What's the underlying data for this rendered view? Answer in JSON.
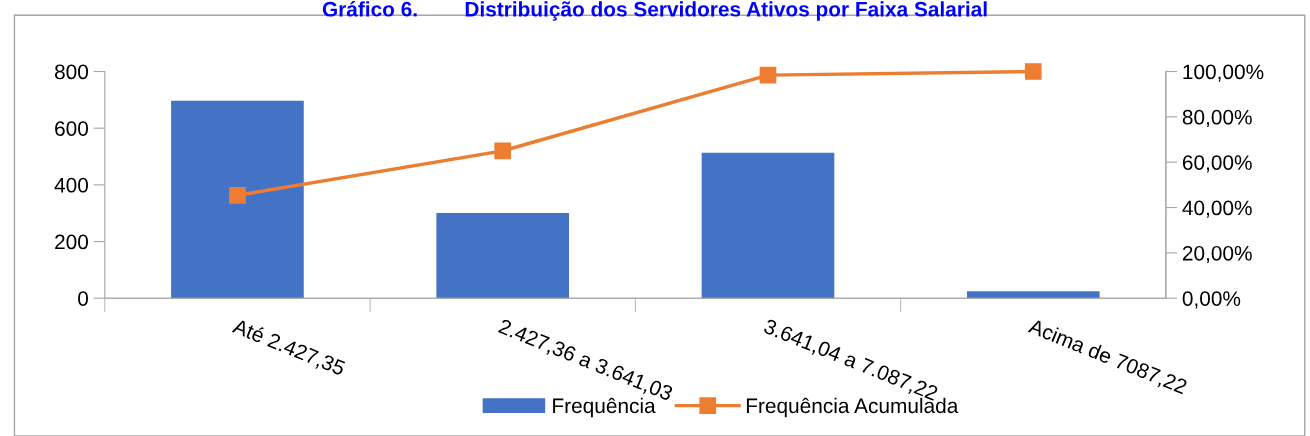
{
  "chart_data": {
    "type": "bar",
    "title": "Gráfico 6.        Distribuição dos Servidores Ativos por Faixa Salarial",
    "categories": [
      "Até 2.427,35",
      "2.427,36 a 3.641,03",
      "3.641,04 a 7.087,22",
      "Acima de 7087,22"
    ],
    "series": [
      {
        "name": "Frequência",
        "color": "#4472c4",
        "values": [
          697,
          301,
          513,
          25
        ]
      },
      {
        "name": "Frequência Acumulada",
        "type": "line",
        "axis": "y2",
        "color": "#ed7d31",
        "marker": "square",
        "values": [
          45.4,
          65.0,
          98.4,
          100
        ]
      }
    ],
    "ylim": [
      0,
      800
    ],
    "yticks": [
      0,
      200,
      400,
      600,
      800
    ],
    "y2lim": [
      0,
      100
    ],
    "y2ticks": [
      {
        "value": 0,
        "label": "0,00%"
      },
      {
        "value": 20,
        "label": "20,00%"
      },
      {
        "value": 40,
        "label": "40,00%"
      },
      {
        "value": 60,
        "label": "60,00%"
      },
      {
        "value": 80,
        "label": "80,00%"
      },
      {
        "value": 100,
        "label": "100,00%"
      }
    ],
    "grid": false,
    "legend": "bottom"
  }
}
